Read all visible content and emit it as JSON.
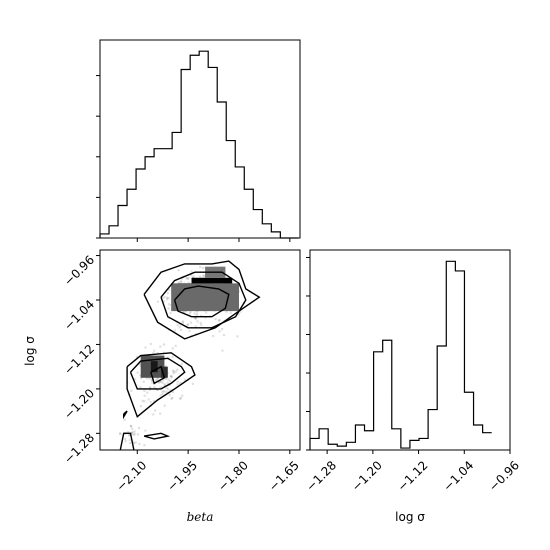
{
  "chart_data": [
    {
      "type": "histogram",
      "panel": "top-left",
      "xlim": [
        -2.21,
        -1.62
      ],
      "bin_start": -2.21,
      "bin_width": 0.0266,
      "counts": [
        2,
        6,
        16,
        24,
        34,
        40,
        44,
        44,
        52,
        83,
        90,
        92,
        84,
        67,
        48,
        35,
        24,
        14,
        7,
        3,
        0,
        0
      ]
    },
    {
      "type": "heatmap",
      "panel": "bottom-left",
      "xlim": [
        -2.21,
        -1.62
      ],
      "ylim": [
        -1.31,
        -0.95
      ],
      "xticks": [
        "−2.10",
        "−1.95",
        "−1.80",
        "−1.65"
      ],
      "xtick_values": [
        -2.1,
        -1.95,
        -1.8,
        -1.65
      ],
      "yticks": [
        "−0.96",
        "−1.04",
        "−1.12",
        "−1.20",
        "−1.28"
      ],
      "ytick_values": [
        -0.96,
        -1.04,
        -1.12,
        -1.2,
        -1.28
      ],
      "xlabel": "beta",
      "ylabel": "log σ",
      "cells": [
        {
          "x": -1.94,
          "y": -1.04,
          "w": 0.12,
          "h": 0.04,
          "v": 1.0
        },
        {
          "x": -1.98,
          "y": -1.03,
          "w": 0.04,
          "h": 0.02,
          "v": 0.8
        },
        {
          "x": -1.88,
          "y": -1.03,
          "w": 0.04,
          "h": 0.02,
          "v": 0.8
        },
        {
          "x": -2.0,
          "y": -1.06,
          "w": 0.2,
          "h": 0.05,
          "v": 0.55
        },
        {
          "x": -1.9,
          "y": -1.0,
          "w": 0.06,
          "h": 0.02,
          "v": 0.5
        },
        {
          "x": -2.09,
          "y": -1.18,
          "w": 0.07,
          "h": 0.04,
          "v": 0.65
        },
        {
          "x": -2.06,
          "y": -1.17,
          "w": 0.02,
          "h": 0.02,
          "v": 0.9
        },
        {
          "x": -2.03,
          "y": -1.18,
          "w": 0.02,
          "h": 0.02,
          "v": 0.8
        }
      ],
      "contours": [
        [
          [
            -1.99,
            -1.04
          ],
          [
            -1.96,
            -1.02
          ],
          [
            -1.92,
            -1.015
          ],
          [
            -1.86,
            -1.02
          ],
          [
            -1.83,
            -1.03
          ],
          [
            -1.84,
            -1.055
          ],
          [
            -1.88,
            -1.07
          ],
          [
            -1.94,
            -1.07
          ],
          [
            -1.98,
            -1.06
          ],
          [
            -1.99,
            -1.04
          ]
        ],
        [
          [
            -2.03,
            -1.035
          ],
          [
            -1.99,
            -1.005
          ],
          [
            -1.93,
            -0.99
          ],
          [
            -1.85,
            -0.99
          ],
          [
            -1.8,
            -1.01
          ],
          [
            -1.78,
            -1.04
          ],
          [
            -1.81,
            -1.07
          ],
          [
            -1.88,
            -1.09
          ],
          [
            -1.95,
            -1.09
          ],
          [
            -2.01,
            -1.07
          ],
          [
            -2.03,
            -1.035
          ]
        ],
        [
          [
            -2.08,
            -1.03
          ],
          [
            -2.03,
            -0.99
          ],
          [
            -1.96,
            -0.975
          ],
          [
            -1.88,
            -0.975
          ],
          [
            -1.83,
            -0.97
          ],
          [
            -1.8,
            -0.985
          ],
          [
            -1.78,
            -1.02
          ],
          [
            -1.74,
            -1.035
          ],
          [
            -1.8,
            -1.06
          ],
          [
            -1.87,
            -1.09
          ],
          [
            -1.96,
            -1.11
          ],
          [
            -2.04,
            -1.08
          ],
          [
            -2.08,
            -1.03
          ]
        ],
        [
          [
            -2.06,
            -1.17
          ],
          [
            -2.03,
            -1.16
          ],
          [
            -2.02,
            -1.18
          ],
          [
            -2.05,
            -1.19
          ],
          [
            -2.06,
            -1.17
          ]
        ],
        [
          [
            -2.12,
            -1.17
          ],
          [
            -2.09,
            -1.15
          ],
          [
            -2.01,
            -1.145
          ],
          [
            -1.97,
            -1.16
          ],
          [
            -1.96,
            -1.17
          ],
          [
            -2.0,
            -1.19
          ],
          [
            -2.03,
            -1.2
          ],
          [
            -2.1,
            -1.2
          ],
          [
            -2.12,
            -1.17
          ]
        ],
        [
          [
            -2.13,
            -1.16
          ],
          [
            -2.09,
            -1.14
          ],
          [
            -2.0,
            -1.135
          ],
          [
            -1.94,
            -1.16
          ],
          [
            -1.93,
            -1.175
          ],
          [
            -1.99,
            -1.2
          ],
          [
            -2.04,
            -1.22
          ],
          [
            -2.1,
            -1.25
          ],
          [
            -2.13,
            -1.2
          ],
          [
            -2.13,
            -1.16
          ]
        ],
        [
          [
            -2.14,
            -1.245
          ],
          [
            -2.13,
            -1.24
          ],
          [
            -2.14,
            -1.25
          ],
          [
            -2.14,
            -1.245
          ]
        ],
        [
          [
            -2.08,
            -1.285
          ],
          [
            -2.03,
            -1.28
          ],
          [
            -2.01,
            -1.285
          ],
          [
            -2.05,
            -1.29
          ],
          [
            -2.08,
            -1.285
          ]
        ],
        [
          [
            -2.15,
            -1.31
          ],
          [
            -2.14,
            -1.28
          ],
          [
            -2.12,
            -1.28
          ],
          [
            -2.11,
            -1.31
          ]
        ]
      ]
    },
    {
      "type": "histogram",
      "panel": "bottom-right",
      "xlim": [
        -1.31,
        -0.96
      ],
      "xticks": [
        "−1.28",
        "−1.20",
        "−1.12",
        "−1.04",
        "−0.96"
      ],
      "xtick_values": [
        -1.28,
        -1.2,
        -1.12,
        -1.04,
        -0.96
      ],
      "xlabel": "log σ",
      "bin_start": -1.31,
      "bin_width": 0.0159,
      "counts": [
        6,
        11,
        3,
        2,
        4,
        13,
        10,
        51,
        57,
        11,
        1,
        5,
        6,
        21,
        54,
        98,
        93,
        30,
        13,
        9
      ]
    }
  ]
}
